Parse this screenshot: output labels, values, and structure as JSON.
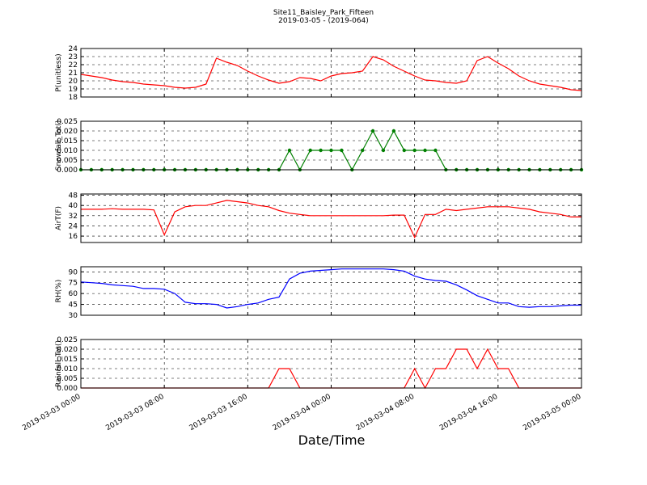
{
  "title": "Site11_Baisley_Park_Fifteen",
  "subtitle": "2019-03-05 - (2019-064)",
  "x_label": "Date/Time",
  "chart_data": [
    {
      "type": "line",
      "y_label": "P(unitless)",
      "color": "#ff0000",
      "grid": true,
      "xlim": [
        "2019-03-03 00:00",
        "2019-03-05 00:00"
      ],
      "xticks": [
        "2019-03-03 00:00",
        "2019-03-03 08:00",
        "2019-03-03 16:00",
        "2019-03-04 00:00",
        "2019-03-04 08:00",
        "2019-03-04 16:00",
        "2019-03-05 00:00"
      ],
      "ylim": [
        18,
        24
      ],
      "yticks": [
        18,
        19,
        20,
        21,
        22,
        23,
        24
      ],
      "x": [
        "2019-03-03 00:00",
        "2019-03-03 01:00",
        "2019-03-03 02:00",
        "2019-03-03 03:00",
        "2019-03-03 04:00",
        "2019-03-03 05:00",
        "2019-03-03 06:00",
        "2019-03-03 07:00",
        "2019-03-03 08:00",
        "2019-03-03 09:00",
        "2019-03-03 10:00",
        "2019-03-03 11:00",
        "2019-03-03 12:00",
        "2019-03-03 13:00",
        "2019-03-03 14:00",
        "2019-03-03 15:00",
        "2019-03-03 16:00",
        "2019-03-03 17:00",
        "2019-03-03 18:00",
        "2019-03-03 19:00",
        "2019-03-03 20:00",
        "2019-03-03 21:00",
        "2019-03-03 22:00",
        "2019-03-03 23:00",
        "2019-03-04 00:00",
        "2019-03-04 01:00",
        "2019-03-04 02:00",
        "2019-03-04 03:00",
        "2019-03-04 04:00",
        "2019-03-04 05:00",
        "2019-03-04 06:00",
        "2019-03-04 07:00",
        "2019-03-04 08:00",
        "2019-03-04 09:00",
        "2019-03-04 10:00",
        "2019-03-04 11:00",
        "2019-03-04 12:00",
        "2019-03-04 13:00",
        "2019-03-04 14:00",
        "2019-03-04 15:00",
        "2019-03-04 16:00",
        "2019-03-04 17:00",
        "2019-03-04 18:00",
        "2019-03-04 19:00",
        "2019-03-04 20:00",
        "2019-03-04 21:00",
        "2019-03-04 22:00",
        "2019-03-04 23:00",
        "2019-03-05 00:00"
      ],
      "values": [
        20.8,
        20.6,
        20.4,
        20.1,
        19.9,
        19.8,
        19.6,
        19.5,
        19.4,
        19.2,
        19.1,
        19.2,
        19.6,
        22.8,
        22.3,
        21.9,
        21.2,
        20.6,
        20.1,
        19.7,
        19.9,
        20.4,
        20.3,
        20.0,
        20.6,
        20.9,
        21.0,
        21.2,
        23.0,
        22.6,
        21.8,
        21.2,
        20.6,
        20.1,
        20.0,
        19.8,
        19.7,
        20.0,
        22.5,
        23.0,
        22.2,
        21.5,
        20.6,
        20.0,
        19.6,
        19.4,
        19.2,
        18.9,
        18.8
      ]
    },
    {
      "type": "line",
      "y_label": "Snowfall_Tot()",
      "color": "#007f00",
      "marker": "o",
      "grid": true,
      "xlim": [
        "2019-03-03 00:00",
        "2019-03-05 00:00"
      ],
      "xticks": [
        "2019-03-03 00:00",
        "2019-03-03 08:00",
        "2019-03-03 16:00",
        "2019-03-04 00:00",
        "2019-03-04 08:00",
        "2019-03-04 16:00",
        "2019-03-05 00:00"
      ],
      "ylim": [
        0,
        0.025
      ],
      "yticks": [
        {
          "value": 0,
          "label": "0.000"
        },
        {
          "value": 0.005,
          "label": "0.005"
        },
        {
          "value": 0.01,
          "label": "0.010"
        },
        {
          "value": 0.015,
          "label": "0.015"
        },
        {
          "value": 0.02,
          "label": "0.020"
        },
        {
          "value": 0.025,
          "label": "0.025"
        }
      ],
      "x": [
        "2019-03-03 00:00",
        "2019-03-03 01:00",
        "2019-03-03 02:00",
        "2019-03-03 03:00",
        "2019-03-03 04:00",
        "2019-03-03 05:00",
        "2019-03-03 06:00",
        "2019-03-03 07:00",
        "2019-03-03 08:00",
        "2019-03-03 09:00",
        "2019-03-03 10:00",
        "2019-03-03 11:00",
        "2019-03-03 12:00",
        "2019-03-03 13:00",
        "2019-03-03 14:00",
        "2019-03-03 15:00",
        "2019-03-03 16:00",
        "2019-03-03 17:00",
        "2019-03-03 18:00",
        "2019-03-03 19:00",
        "2019-03-03 20:00",
        "2019-03-03 21:00",
        "2019-03-03 22:00",
        "2019-03-03 23:00",
        "2019-03-04 00:00",
        "2019-03-04 01:00",
        "2019-03-04 02:00",
        "2019-03-04 03:00",
        "2019-03-04 04:00",
        "2019-03-04 05:00",
        "2019-03-04 06:00",
        "2019-03-04 07:00",
        "2019-03-04 08:00",
        "2019-03-04 09:00",
        "2019-03-04 10:00",
        "2019-03-04 11:00",
        "2019-03-04 12:00",
        "2019-03-04 13:00",
        "2019-03-04 14:00",
        "2019-03-04 15:00",
        "2019-03-04 16:00",
        "2019-03-04 17:00",
        "2019-03-04 18:00",
        "2019-03-04 19:00",
        "2019-03-04 20:00",
        "2019-03-04 21:00",
        "2019-03-04 22:00",
        "2019-03-04 23:00",
        "2019-03-05 00:00"
      ],
      "values": [
        0,
        0,
        0,
        0,
        0,
        0,
        0,
        0,
        0,
        0,
        0,
        0,
        0,
        0,
        0,
        0,
        0,
        0,
        0,
        0,
        0.01,
        0,
        0.01,
        0.01,
        0.01,
        0.01,
        0,
        0.01,
        0.02,
        0.01,
        0.02,
        0.01,
        0.01,
        0.01,
        0.01,
        0,
        0,
        0,
        0,
        0,
        0,
        0,
        0,
        0,
        0,
        0,
        0,
        0,
        0
      ]
    },
    {
      "type": "line",
      "y_label": "AirT(F)",
      "color": "#ff0000",
      "grid": true,
      "xlim": [
        "2019-03-03 00:00",
        "2019-03-05 00:00"
      ],
      "xticks": [
        "2019-03-03 00:00",
        "2019-03-03 08:00",
        "2019-03-03 16:00",
        "2019-03-04 00:00",
        "2019-03-04 08:00",
        "2019-03-04 16:00",
        "2019-03-05 00:00"
      ],
      "ylim": [
        11,
        49
      ],
      "yticks": [
        16,
        24,
        32,
        40,
        48
      ],
      "x": [
        "2019-03-03 00:00",
        "2019-03-03 01:00",
        "2019-03-03 02:00",
        "2019-03-03 03:00",
        "2019-03-03 04:00",
        "2019-03-03 05:00",
        "2019-03-03 06:00",
        "2019-03-03 07:00",
        "2019-03-03 08:00",
        "2019-03-03 09:00",
        "2019-03-03 10:00",
        "2019-03-03 11:00",
        "2019-03-03 12:00",
        "2019-03-03 13:00",
        "2019-03-03 14:00",
        "2019-03-03 15:00",
        "2019-03-03 16:00",
        "2019-03-03 17:00",
        "2019-03-03 18:00",
        "2019-03-03 19:00",
        "2019-03-03 20:00",
        "2019-03-03 21:00",
        "2019-03-03 22:00",
        "2019-03-03 23:00",
        "2019-03-04 00:00",
        "2019-03-04 01:00",
        "2019-03-04 02:00",
        "2019-03-04 03:00",
        "2019-03-04 04:00",
        "2019-03-04 05:00",
        "2019-03-04 06:00",
        "2019-03-04 07:00",
        "2019-03-04 08:00",
        "2019-03-04 09:00",
        "2019-03-04 10:00",
        "2019-03-04 11:00",
        "2019-03-04 12:00",
        "2019-03-04 13:00",
        "2019-03-04 14:00",
        "2019-03-04 15:00",
        "2019-03-04 16:00",
        "2019-03-04 17:00",
        "2019-03-04 18:00",
        "2019-03-04 19:00",
        "2019-03-04 20:00",
        "2019-03-04 21:00",
        "2019-03-04 22:00",
        "2019-03-04 23:00",
        "2019-03-05 00:00"
      ],
      "values": [
        37,
        37,
        37,
        37.5,
        37,
        37,
        37,
        36.5,
        17,
        35,
        39,
        40,
        40,
        42,
        44,
        43,
        42,
        40,
        39,
        36,
        34,
        33,
        32,
        32,
        32,
        32,
        32,
        32,
        32,
        32,
        32.5,
        32.5,
        15,
        33,
        33,
        37,
        36,
        37,
        38,
        39,
        39,
        39,
        38,
        37,
        35,
        34,
        33,
        31,
        31
      ]
    },
    {
      "type": "line",
      "y_label": "RH(%)",
      "color": "#0000ff",
      "grid": true,
      "xlim": [
        "2019-03-03 00:00",
        "2019-03-05 00:00"
      ],
      "xticks": [
        "2019-03-03 00:00",
        "2019-03-03 08:00",
        "2019-03-03 16:00",
        "2019-03-04 00:00",
        "2019-03-04 08:00",
        "2019-03-04 16:00",
        "2019-03-05 00:00"
      ],
      "ylim": [
        30,
        97
      ],
      "yticks": [
        30,
        45,
        60,
        75,
        90
      ],
      "x": [
        "2019-03-03 00:00",
        "2019-03-03 01:00",
        "2019-03-03 02:00",
        "2019-03-03 03:00",
        "2019-03-03 04:00",
        "2019-03-03 05:00",
        "2019-03-03 06:00",
        "2019-03-03 07:00",
        "2019-03-03 08:00",
        "2019-03-03 09:00",
        "2019-03-03 10:00",
        "2019-03-03 11:00",
        "2019-03-03 12:00",
        "2019-03-03 13:00",
        "2019-03-03 14:00",
        "2019-03-03 15:00",
        "2019-03-03 16:00",
        "2019-03-03 17:00",
        "2019-03-03 18:00",
        "2019-03-03 19:00",
        "2019-03-03 20:00",
        "2019-03-03 21:00",
        "2019-03-03 22:00",
        "2019-03-03 23:00",
        "2019-03-04 00:00",
        "2019-03-04 01:00",
        "2019-03-04 02:00",
        "2019-03-04 03:00",
        "2019-03-04 04:00",
        "2019-03-04 05:00",
        "2019-03-04 06:00",
        "2019-03-04 07:00",
        "2019-03-04 08:00",
        "2019-03-04 09:00",
        "2019-03-04 10:00",
        "2019-03-04 11:00",
        "2019-03-04 12:00",
        "2019-03-04 13:00",
        "2019-03-04 14:00",
        "2019-03-04 15:00",
        "2019-03-04 16:00",
        "2019-03-04 17:00",
        "2019-03-04 18:00",
        "2019-03-04 19:00",
        "2019-03-04 20:00",
        "2019-03-04 21:00",
        "2019-03-04 22:00",
        "2019-03-04 23:00",
        "2019-03-05 00:00"
      ],
      "values": [
        76,
        75,
        74,
        72,
        71,
        70,
        67,
        67,
        66,
        60,
        48,
        46,
        46,
        45,
        40,
        42,
        45,
        47,
        52,
        55,
        80,
        88,
        91,
        92,
        93,
        94,
        94,
        94,
        94,
        94,
        93,
        91,
        84,
        80,
        78,
        77,
        72,
        65,
        57,
        52,
        47,
        47,
        42,
        41,
        42,
        42,
        43,
        44,
        44
      ]
    },
    {
      "type": "line",
      "y_label": "Rainfall_Tot()",
      "color": "#ff0000",
      "grid": true,
      "show_xtick_labels": true,
      "xlim": [
        "2019-03-03 00:00",
        "2019-03-05 00:00"
      ],
      "xticks": [
        "2019-03-03 00:00",
        "2019-03-03 08:00",
        "2019-03-03 16:00",
        "2019-03-04 00:00",
        "2019-03-04 08:00",
        "2019-03-04 16:00",
        "2019-03-05 00:00"
      ],
      "ylim": [
        0,
        0.025
      ],
      "yticks": [
        {
          "value": 0,
          "label": "0.000"
        },
        {
          "value": 0.005,
          "label": "0.005"
        },
        {
          "value": 0.01,
          "label": "0.010"
        },
        {
          "value": 0.015,
          "label": "0.015"
        },
        {
          "value": 0.02,
          "label": "0.020"
        },
        {
          "value": 0.025,
          "label": "0.025"
        }
      ],
      "x": [
        "2019-03-03 00:00",
        "2019-03-03 01:00",
        "2019-03-03 02:00",
        "2019-03-03 03:00",
        "2019-03-03 04:00",
        "2019-03-03 05:00",
        "2019-03-03 06:00",
        "2019-03-03 07:00",
        "2019-03-03 08:00",
        "2019-03-03 09:00",
        "2019-03-03 10:00",
        "2019-03-03 11:00",
        "2019-03-03 12:00",
        "2019-03-03 13:00",
        "2019-03-03 14:00",
        "2019-03-03 15:00",
        "2019-03-03 16:00",
        "2019-03-03 17:00",
        "2019-03-03 18:00",
        "2019-03-03 19:00",
        "2019-03-03 20:00",
        "2019-03-03 21:00",
        "2019-03-03 22:00",
        "2019-03-03 23:00",
        "2019-03-04 00:00",
        "2019-03-04 01:00",
        "2019-03-04 02:00",
        "2019-03-04 03:00",
        "2019-03-04 04:00",
        "2019-03-04 05:00",
        "2019-03-04 06:00",
        "2019-03-04 07:00",
        "2019-03-04 08:00",
        "2019-03-04 09:00",
        "2019-03-04 10:00",
        "2019-03-04 11:00",
        "2019-03-04 12:00",
        "2019-03-04 13:00",
        "2019-03-04 14:00",
        "2019-03-04 15:00",
        "2019-03-04 16:00",
        "2019-03-04 17:00",
        "2019-03-04 18:00",
        "2019-03-04 19:00",
        "2019-03-04 20:00",
        "2019-03-04 21:00",
        "2019-03-04 22:00",
        "2019-03-04 23:00",
        "2019-03-05 00:00"
      ],
      "values": [
        0,
        0,
        0,
        0,
        0,
        0,
        0,
        0,
        0,
        0,
        0,
        0,
        0,
        0,
        0,
        0,
        0,
        0,
        0,
        0.01,
        0.01,
        0,
        0,
        0,
        0,
        0,
        0,
        0,
        0,
        0,
        0,
        0,
        0.01,
        0,
        0.01,
        0.01,
        0.02,
        0.02,
        0.01,
        0.02,
        0.01,
        0.01,
        0,
        0,
        0,
        0,
        0,
        0,
        0
      ]
    }
  ]
}
